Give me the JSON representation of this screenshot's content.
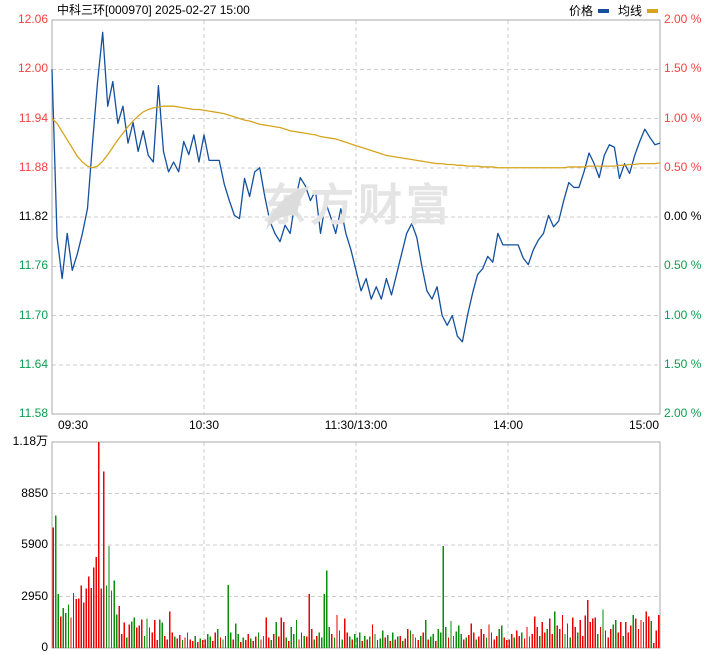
{
  "header": {
    "title": "中科三环[000970] 2025-02-27 15:00"
  },
  "legend": [
    {
      "label": "价格",
      "color": "#14509e"
    },
    {
      "label": "均线",
      "color": "#d6a41f"
    }
  ],
  "watermark": "东方财富",
  "colors": {
    "up": "#f94141",
    "down": "#0a9e4e",
    "neutral": "#000000",
    "bar_up": "#ee0000",
    "bar_down": "#0a8f0a",
    "price_line": "#14509e",
    "avg_line": "#d6a41f",
    "grid": "#cccccc",
    "border": "#a8a8a8"
  },
  "chart_data": [
    {
      "type": "line",
      "panel": "price",
      "title": "intraday price (1-min)",
      "x_ticks": [
        "09:30",
        "10:30",
        "11:30/13:00",
        "14:00",
        "15:00"
      ],
      "left_axis_labels": [
        "12.06",
        "12.00",
        "11.94",
        "11.88",
        "11.82",
        "11.76",
        "11.70",
        "11.64",
        "11.58"
      ],
      "left_axis_colors": [
        "up",
        "up",
        "up",
        "up",
        "neutral",
        "down",
        "down",
        "down",
        "down"
      ],
      "right_axis_labels": [
        "2.00 %",
        "1.50 %",
        "1.00 %",
        "0.50 %",
        "0.00 %",
        "0.50 %",
        "1.00 %",
        "1.50 %",
        "2.00 %"
      ],
      "right_axis_colors": [
        "up",
        "up",
        "up",
        "up",
        "neutral",
        "down",
        "down",
        "down",
        "down"
      ],
      "prev_close": 11.82,
      "ylim": [
        11.58,
        12.06
      ],
      "grid": true,
      "legend_position": "top-right",
      "series": [
        {
          "name": "价格",
          "color_key": "price_line",
          "values": [
            12.0,
            11.795,
            11.745,
            11.8,
            11.755,
            11.775,
            11.8,
            11.83,
            11.91,
            11.985,
            12.045,
            11.955,
            11.985,
            11.934,
            11.955,
            11.91,
            11.935,
            11.9,
            11.925,
            11.895,
            11.887,
            11.98,
            11.9,
            11.875,
            11.887,
            11.875,
            11.912,
            11.896,
            11.92,
            11.887,
            11.92,
            11.889,
            11.889,
            11.889,
            11.86,
            11.84,
            11.822,
            11.818,
            11.867,
            11.845,
            11.875,
            11.88,
            11.845,
            11.815,
            11.8,
            11.79,
            11.81,
            11.8,
            11.84,
            11.868,
            11.858,
            11.84,
            11.852,
            11.8,
            11.838,
            11.82,
            11.8,
            11.83,
            11.8,
            11.78,
            11.755,
            11.73,
            11.745,
            11.72,
            11.735,
            11.72,
            11.745,
            11.725,
            11.75,
            11.775,
            11.8,
            11.812,
            11.795,
            11.76,
            11.73,
            11.72,
            11.735,
            11.7,
            11.688,
            11.7,
            11.675,
            11.668,
            11.7,
            11.727,
            11.75,
            11.757,
            11.772,
            11.765,
            11.8,
            11.786,
            11.786,
            11.786,
            11.786,
            11.77,
            11.762,
            11.78,
            11.792,
            11.8,
            11.822,
            11.808,
            11.815,
            11.84,
            11.862,
            11.856,
            11.856,
            11.875,
            11.898,
            11.885,
            11.868,
            11.895,
            11.908,
            11.905,
            11.867,
            11.885,
            11.873,
            11.895,
            11.912,
            11.927,
            11.917,
            11.908,
            11.91
          ]
        },
        {
          "name": "均线",
          "color_key": "avg_line",
          "values": [
            11.94,
            11.934,
            11.924,
            11.914,
            11.904,
            11.894,
            11.887,
            11.882,
            11.88,
            11.882,
            11.888,
            11.896,
            11.905,
            11.914,
            11.922,
            11.93,
            11.937,
            11.943,
            11.948,
            11.951,
            11.953,
            11.954,
            11.955,
            11.955,
            11.955,
            11.954,
            11.953,
            11.952,
            11.951,
            11.951,
            11.95,
            11.949,
            11.948,
            11.947,
            11.946,
            11.944,
            11.942,
            11.94,
            11.938,
            11.937,
            11.935,
            11.933,
            11.932,
            11.931,
            11.93,
            11.929,
            11.927,
            11.925,
            11.924,
            11.923,
            11.922,
            11.921,
            11.92,
            11.918,
            11.917,
            11.916,
            11.915,
            11.913,
            11.911,
            11.909,
            11.907,
            11.905,
            11.903,
            11.901,
            11.899,
            11.897,
            11.895,
            11.894,
            11.893,
            11.892,
            11.891,
            11.89,
            11.889,
            11.888,
            11.887,
            11.886,
            11.885,
            11.885,
            11.884,
            11.884,
            11.883,
            11.883,
            11.882,
            11.882,
            11.882,
            11.881,
            11.881,
            11.881,
            11.88,
            11.88,
            11.88,
            11.88,
            11.88,
            11.88,
            11.88,
            11.88,
            11.88,
            11.88,
            11.88,
            11.88,
            11.88,
            11.88,
            11.881,
            11.881,
            11.881,
            11.881,
            11.882,
            11.882,
            11.882,
            11.882,
            11.882,
            11.882,
            11.883,
            11.883,
            11.884,
            11.884,
            11.885,
            11.885,
            11.885,
            11.885,
            11.886
          ]
        }
      ]
    },
    {
      "type": "bar",
      "panel": "volume",
      "title": "volume",
      "y_axis_labels": [
        "1.18万",
        "8850",
        "5900",
        "2950",
        "0"
      ],
      "y_axis_values": [
        11800,
        8850,
        5900,
        2950,
        0
      ],
      "ylim": [
        0,
        11800
      ],
      "values": [
        6900,
        7600,
        3100,
        1800,
        2300,
        2000,
        2500,
        1750,
        3150,
        2800,
        2850,
        3570,
        2600,
        3400,
        4100,
        3440,
        4600,
        5200,
        11800,
        3400,
        10100,
        3570,
        5840,
        3280,
        3860,
        1930,
        2400,
        800,
        1460,
        600,
        1340,
        1520,
        1750,
        1170,
        1290,
        1640,
        700,
        1690,
        1170,
        900,
        1600,
        450,
        1640,
        1460,
        700,
        500,
        2100,
        900,
        650,
        550,
        750,
        450,
        600,
        900,
        500,
        400,
        700,
        350,
        550,
        450,
        500,
        800,
        650,
        400,
        900,
        1100,
        600,
        500,
        700,
        3620,
        900,
        500,
        1400,
        800,
        350,
        600,
        450,
        800,
        550,
        400,
        650,
        900,
        500,
        700,
        1750,
        600,
        450,
        800,
        1500,
        650,
        1750,
        1500,
        600,
        400,
        1200,
        800,
        1600,
        500,
        900,
        700,
        650,
        3100,
        1100,
        500,
        700,
        900,
        600,
        3100,
        4440,
        1200,
        800,
        600,
        1900,
        1000,
        500,
        1700,
        900,
        650,
        500,
        800,
        600,
        900,
        400,
        700,
        500,
        650,
        1340,
        800,
        450,
        550,
        1000,
        600,
        750,
        400,
        900,
        500,
        650,
        700,
        400,
        550,
        1100,
        1000,
        800,
        600,
        450,
        700,
        900,
        1600,
        500,
        650,
        800,
        400,
        1100,
        900,
        5840,
        1200,
        600,
        1550,
        700,
        950,
        1300,
        800,
        500,
        600,
        750,
        1400,
        900,
        500,
        650,
        1100,
        800,
        600,
        1350,
        900,
        500,
        700,
        1100,
        1300,
        600,
        450,
        500,
        800,
        600,
        1000,
        700,
        900,
        550,
        1200,
        650,
        800,
        1800,
        1200,
        700,
        1500,
        900,
        1100,
        1700,
        800,
        2100,
        1300,
        1100,
        1900,
        800,
        1400,
        600,
        1750,
        1200,
        900,
        1600,
        700,
        1850,
        2750,
        1500,
        1700,
        1750,
        800,
        1200,
        2200,
        1000,
        600,
        1100,
        1340,
        1600,
        900,
        1500,
        700,
        1500,
        900,
        1300,
        1900,
        1700,
        1100,
        1600,
        1500,
        2100,
        1800,
        1550,
        300,
        1000,
        1900
      ],
      "directions": "RGGRGGGRRRRRRRRRRRRRRGGGGGRRRGRGGRRRGGRRRRGGRRRRGRRGRGRRGRGRRGGRRGRGRGGRGGRGRRGRRGRGRRGRGRRRGRGGGRRGRRRGRGGGGGRGRRGRRGRGGGRGRGRGRGGRGRGRGRGRRGRGRGRGRGGRGGGGRGGGGGRGRRRGRRRGRRRRGGRRRRGRRGRRGRRRGRRGRRGRRRGRGRRGRRRRRRRGRGRRRGGRRGRRRGRRRGRRGRRR"
    }
  ]
}
